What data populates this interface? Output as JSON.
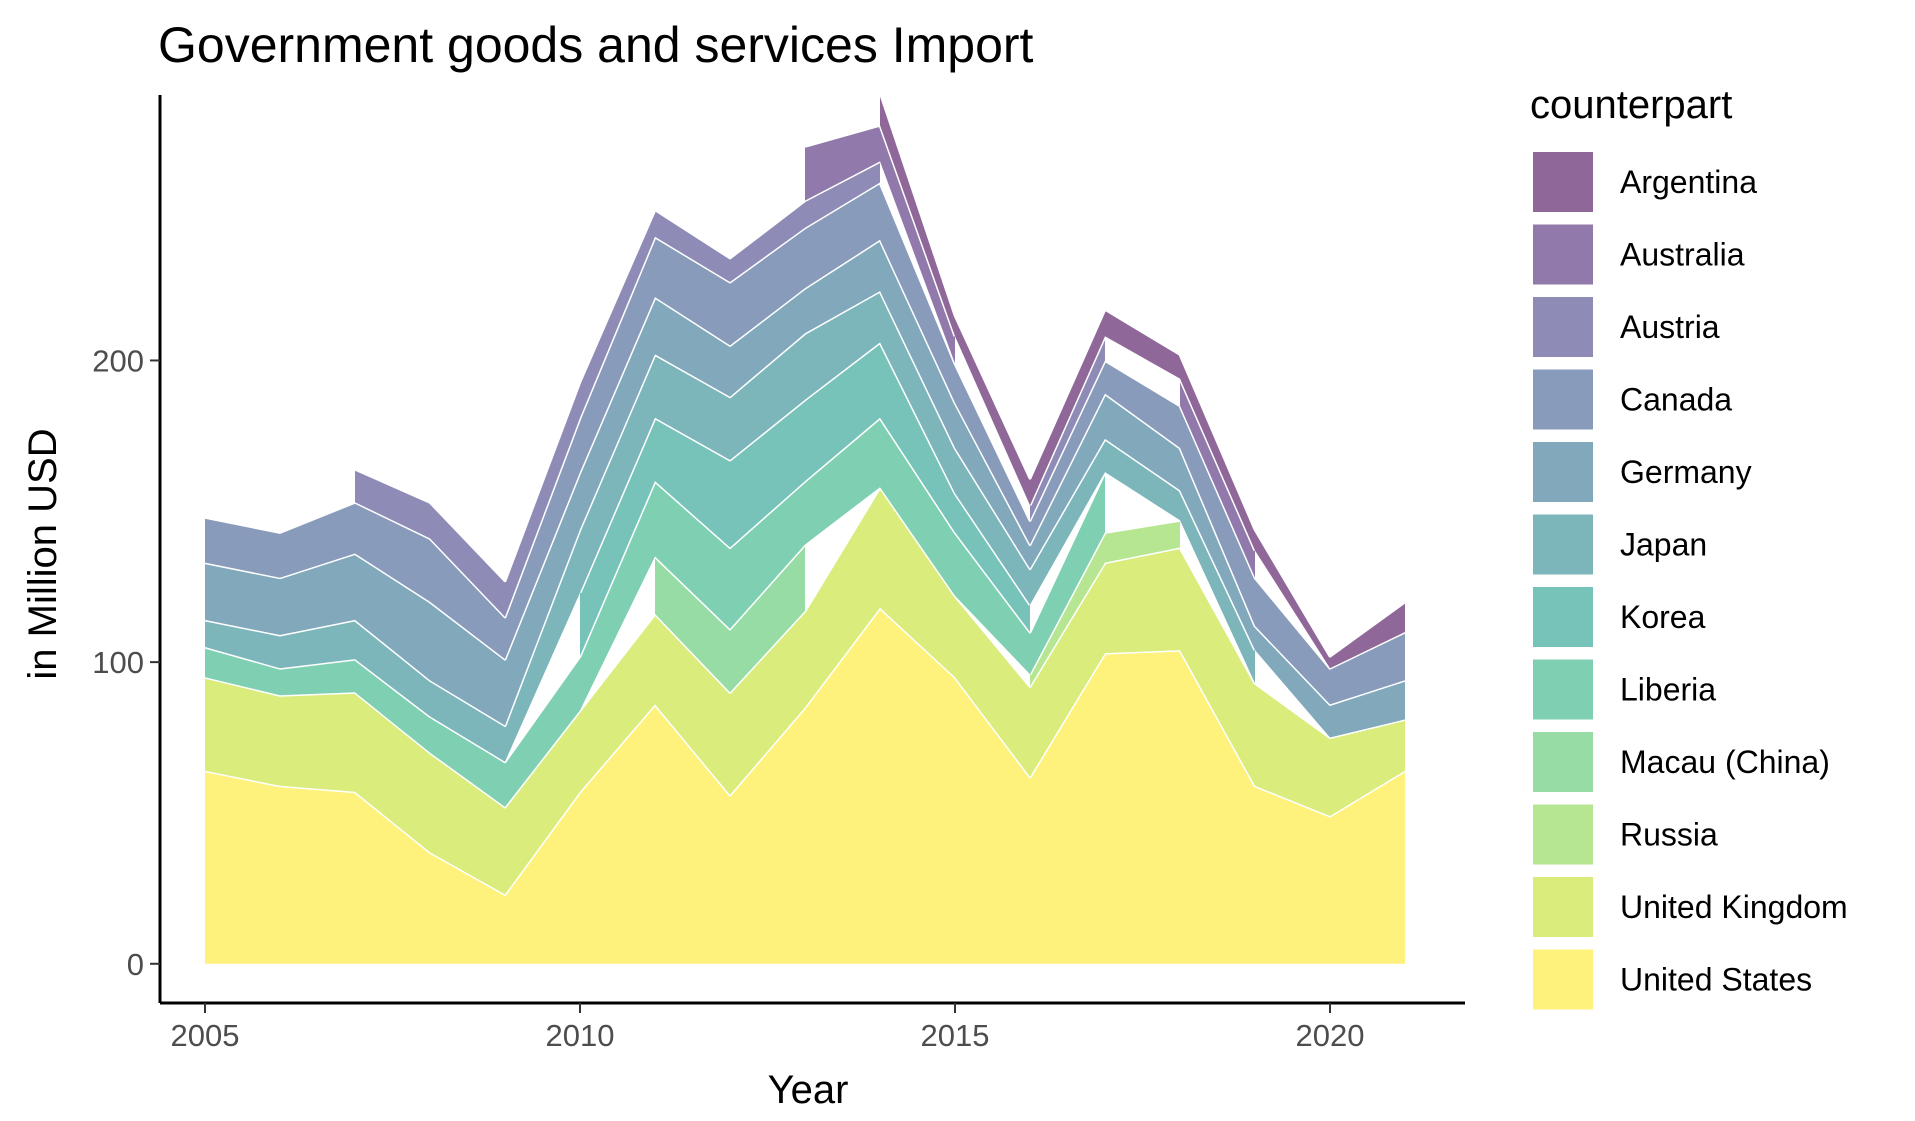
{
  "chart_data": {
    "type": "area",
    "stacked": true,
    "title": "Government goods and services Import",
    "xlabel": "Year",
    "ylabel": "in Million USD",
    "xlim": [
      2004.4,
      2021.8
    ],
    "ylim": [
      -13,
      288
    ],
    "xticks": [
      2005,
      2010,
      2015,
      2020
    ],
    "yticks": [
      0,
      100,
      200
    ],
    "grid": false,
    "legend": {
      "title": "counterpart",
      "position": "right"
    },
    "x": [
      2005,
      2006,
      2007,
      2008,
      2009,
      2010,
      2011,
      2012,
      2013,
      2014,
      2015,
      2016,
      2017,
      2018,
      2019,
      2020,
      2021
    ],
    "series": [
      {
        "name": "United States",
        "color": "#FDE725",
        "values": [
          64,
          59,
          57,
          37,
          23,
          57,
          86,
          56,
          85,
          118,
          95,
          62,
          103,
          104,
          59,
          49,
          64
        ]
      },
      {
        "name": "United Kingdom",
        "color": "#C2DF23",
        "values": [
          31,
          30,
          33,
          33,
          29,
          27,
          30,
          34,
          32,
          40,
          27,
          30,
          30,
          34,
          34,
          26,
          17
        ]
      },
      {
        "name": "Russia",
        "color": "#86D549",
        "values": [
          null,
          null,
          null,
          null,
          null,
          null,
          null,
          null,
          null,
          null,
          null,
          4,
          10,
          9,
          null,
          null,
          null
        ]
      },
      {
        "name": "Macau (China)",
        "color": "#52C569",
        "values": [
          null,
          null,
          null,
          null,
          null,
          null,
          19,
          21,
          22,
          null,
          null,
          null,
          null,
          null,
          null,
          null,
          null
        ]
      },
      {
        "name": "Liberia",
        "color": "#2AB07F",
        "values": [
          10,
          9,
          11,
          12,
          15,
          18,
          25,
          27,
          21,
          23,
          21,
          14,
          20,
          null,
          null,
          null,
          null
        ]
      },
      {
        "name": "Korea",
        "color": "#1E9B8A",
        "values": [
          null,
          null,
          null,
          null,
          null,
          21,
          21,
          29,
          27,
          25,
          13,
          9,
          null,
          null,
          null,
          null,
          null
        ]
      },
      {
        "name": "Japan",
        "color": "#25858E",
        "values": [
          9,
          11,
          13,
          12,
          12,
          21,
          21,
          21,
          22,
          17,
          15,
          12,
          11,
          10,
          11,
          null,
          null
        ]
      },
      {
        "name": "Germany",
        "color": "#2D708E",
        "values": [
          19,
          19,
          22,
          26,
          22,
          19,
          19,
          17,
          15,
          17,
          15,
          8,
          15,
          14,
          8,
          11,
          13
        ]
      },
      {
        "name": "Canada",
        "color": "#38598C",
        "values": [
          15,
          15,
          17,
          21,
          14,
          18,
          20,
          21,
          20,
          19,
          13,
          8,
          11,
          14,
          16,
          12,
          16
        ]
      },
      {
        "name": "Austria",
        "color": "#433E85",
        "values": [
          null,
          null,
          11,
          12,
          12,
          12,
          9,
          8,
          9,
          7,
          null,
          5,
          8,
          null,
          null,
          null,
          null
        ]
      },
      {
        "name": "Australia",
        "color": "#482173",
        "values": [
          null,
          null,
          null,
          null,
          null,
          null,
          null,
          null,
          18,
          12,
          9,
          null,
          null,
          9,
          9,
          null,
          null
        ]
      },
      {
        "name": "Argentina",
        "color": "#440154",
        "values": [
          null,
          null,
          null,
          null,
          null,
          null,
          null,
          null,
          null,
          11,
          7,
          9,
          9,
          8,
          7,
          4,
          10
        ]
      }
    ]
  }
}
